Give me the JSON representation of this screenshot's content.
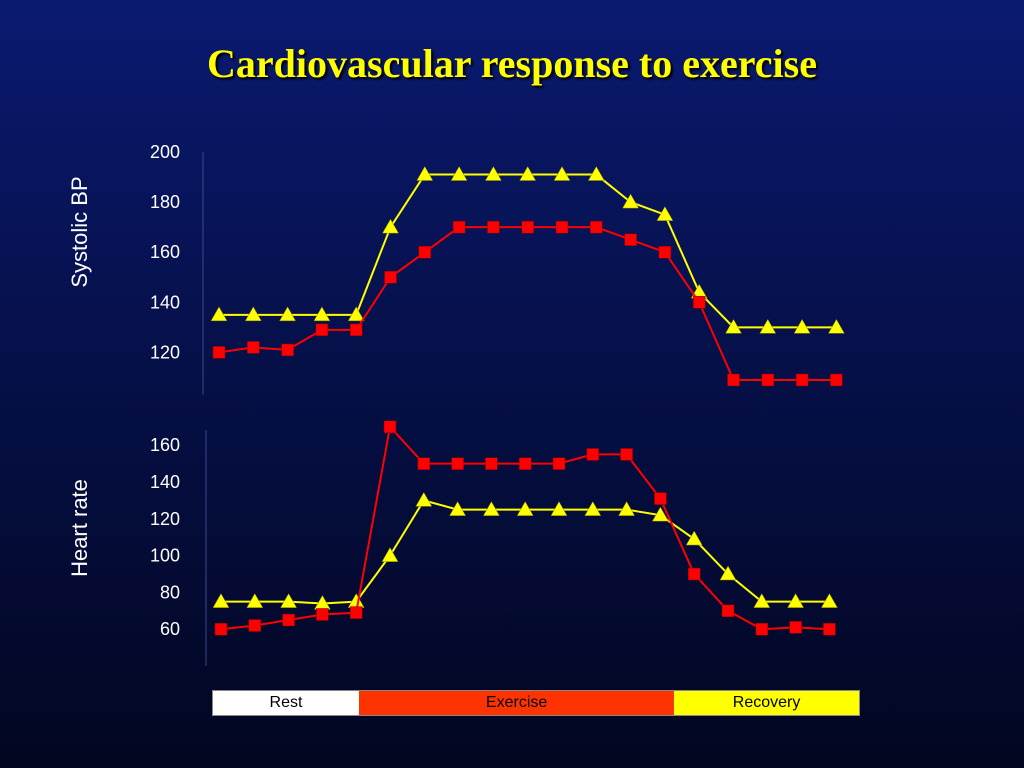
{
  "title": "Cardiovascular response to exercise",
  "chart_data": [
    {
      "type": "line",
      "ylabel": "Systolic BP",
      "y_ticks": [
        200,
        180,
        160,
        140,
        120
      ],
      "ylim": [
        103,
        200
      ],
      "x": [
        1,
        2,
        3,
        4,
        5,
        6,
        7,
        8,
        9,
        10,
        11,
        12,
        13,
        14,
        15,
        16,
        17,
        18,
        19
      ],
      "series": [
        {
          "color": "#ffff00",
          "marker": "triangle",
          "values": [
            135,
            135,
            135,
            135,
            135,
            170,
            191,
            191,
            191,
            191,
            191,
            191,
            180,
            175,
            144,
            130,
            130,
            130,
            130
          ]
        },
        {
          "color": "#ff0000",
          "marker": "square",
          "values": [
            120,
            122,
            121,
            129,
            129,
            150,
            160,
            170,
            170,
            170,
            170,
            170,
            165,
            160,
            140,
            109,
            109,
            109,
            109
          ]
        }
      ]
    },
    {
      "type": "line",
      "ylabel": "Heart rate",
      "y_ticks": [
        160,
        140,
        120,
        100,
        80,
        60
      ],
      "ylim": [
        40,
        171
      ],
      "x": [
        1,
        2,
        3,
        4,
        5,
        6,
        7,
        8,
        9,
        10,
        11,
        12,
        13,
        14,
        15,
        16,
        17,
        18,
        19
      ],
      "series": [
        {
          "color": "#ffff00",
          "marker": "triangle",
          "values": [
            75,
            75,
            75,
            74,
            75,
            100,
            130,
            125,
            125,
            125,
            125,
            125,
            125,
            122,
            109,
            90,
            75,
            75,
            75
          ]
        },
        {
          "color": "#ff0000",
          "marker": "square",
          "values": [
            60,
            62,
            65,
            68,
            69,
            170,
            150,
            150,
            150,
            150,
            150,
            155,
            155,
            131,
            90,
            70,
            60,
            61,
            60
          ]
        }
      ]
    }
  ],
  "phases": [
    {
      "label": "Rest",
      "color": "#ffffff",
      "fraction": 0.226
    },
    {
      "label": "Exercise",
      "color": "#ff3300",
      "fraction": 0.488
    },
    {
      "label": "Recovery",
      "color": "#ffff00",
      "fraction": 0.286
    }
  ]
}
